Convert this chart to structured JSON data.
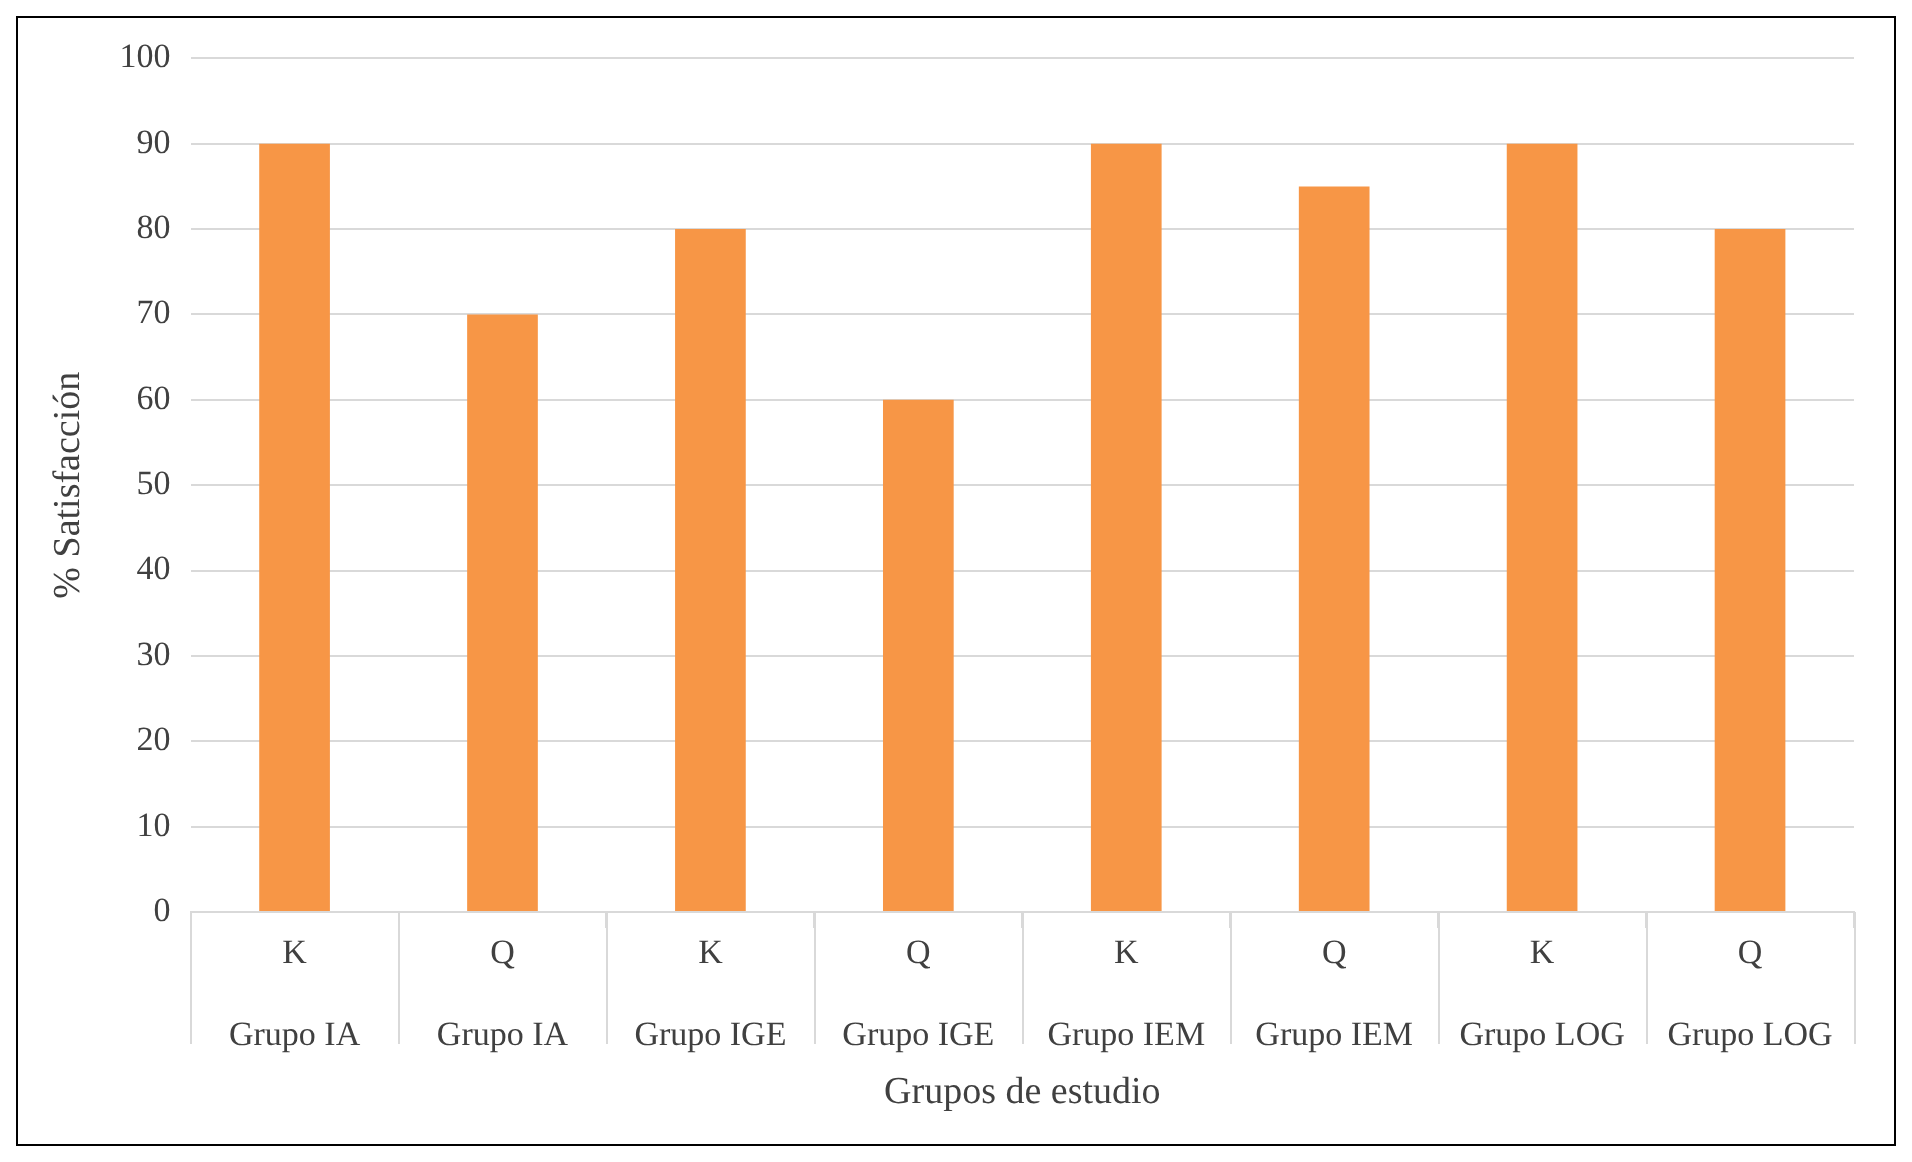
{
  "chart_data": {
    "type": "bar",
    "xlabel": "Grupos de estudio",
    "ylabel": "% Satisfacción",
    "categories": [
      "K\nGrupo IA",
      "Q\nGrupo IA",
      "K\nGrupo IGE",
      "Q\nGrupo IGE",
      "K\nGrupo IEM",
      "Q\nGrupo IEM",
      "K\nGrupo LOG",
      "Q\nGrupo LOG"
    ],
    "values": [
      90,
      70,
      80,
      60,
      90,
      85,
      90,
      80
    ],
    "color": "#f79646",
    "ylim": [
      0,
      100
    ],
    "yticks": [
      0,
      10,
      20,
      30,
      40,
      50,
      60,
      70,
      80,
      90,
      100
    ],
    "grid": "y"
  }
}
